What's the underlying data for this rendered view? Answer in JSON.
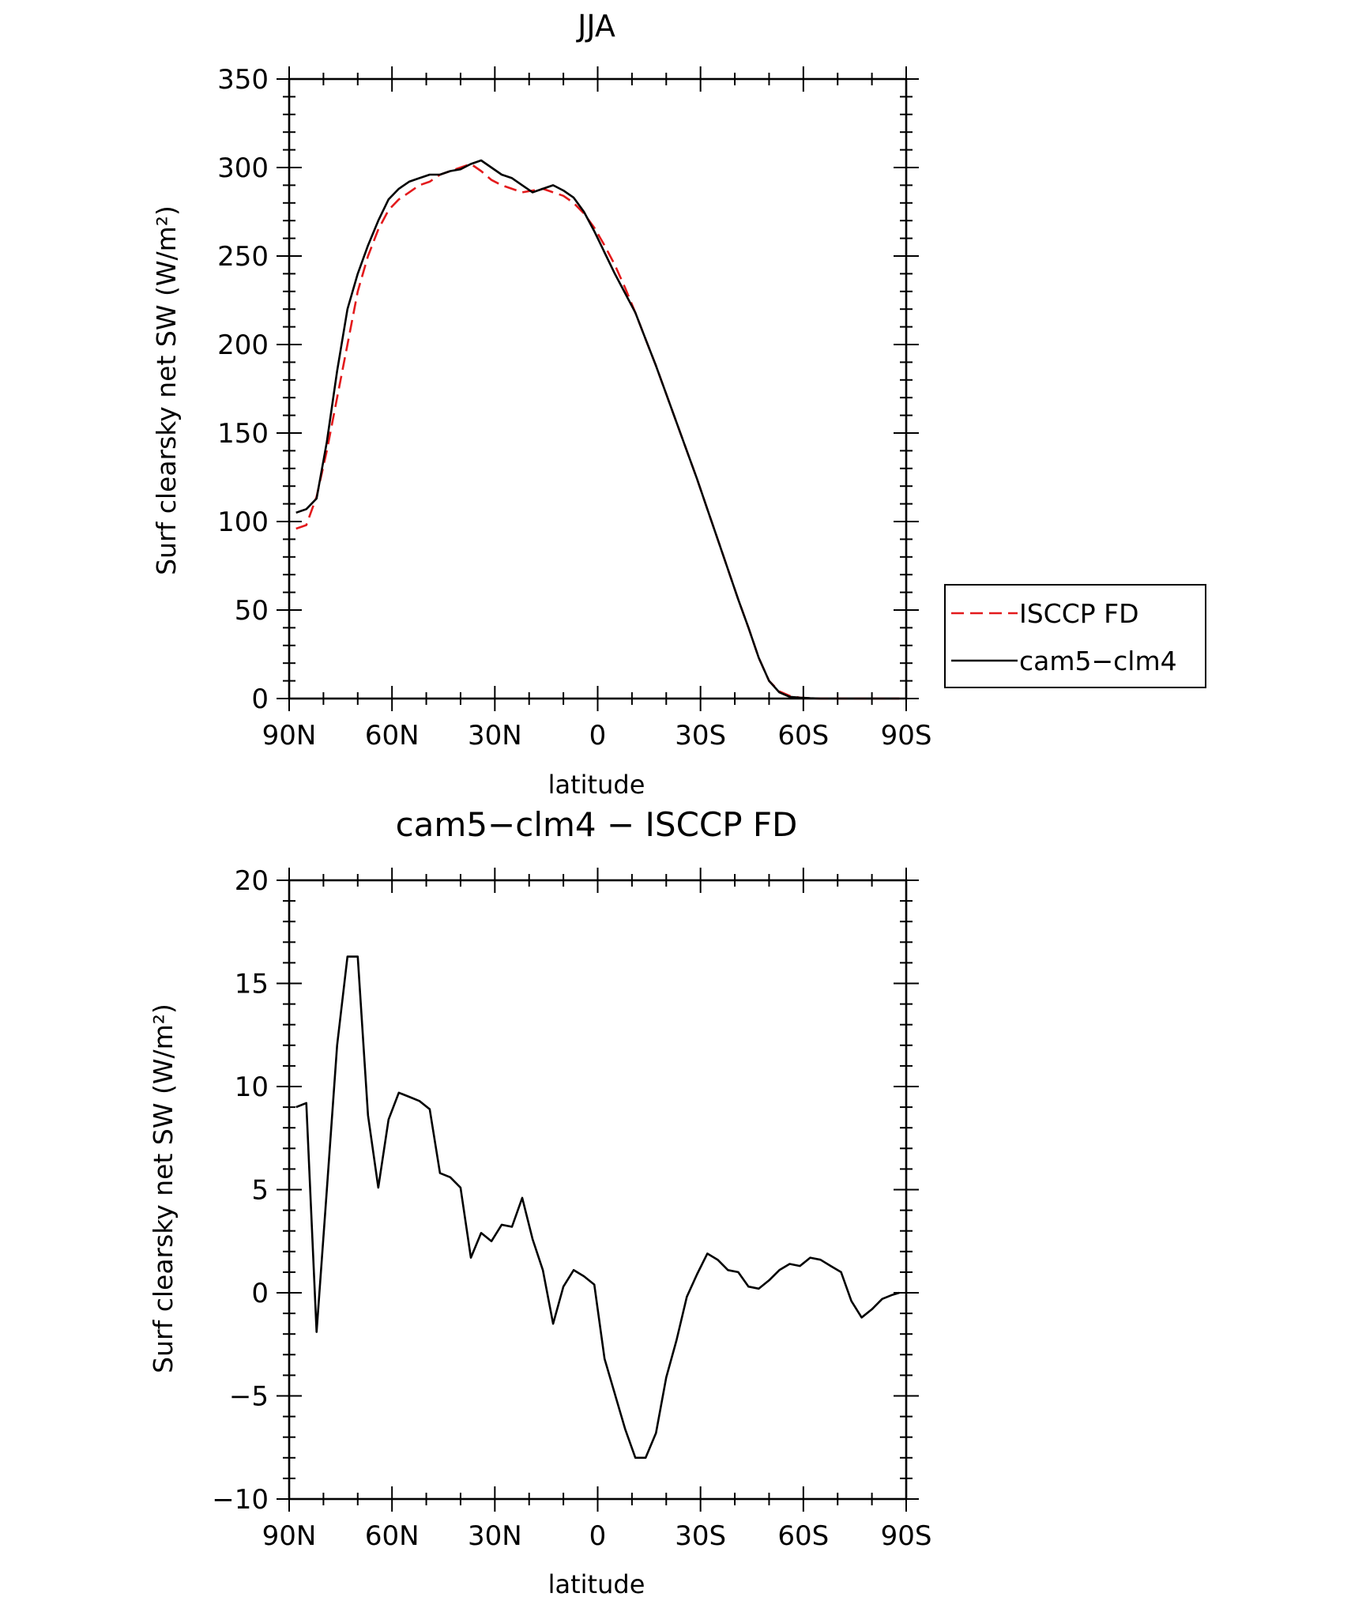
{
  "chart_data": [
    {
      "type": "line",
      "title": "JJA",
      "xlabel": "latitude",
      "ylabel": "Surf clearsky net SW (W/m²)",
      "xlim": [
        90,
        -90
      ],
      "ylim": [
        0,
        350
      ],
      "x_ticks": [
        90,
        60,
        30,
        0,
        -30,
        -60,
        -90
      ],
      "x_tick_labels": [
        "90N",
        "60N",
        "30N",
        "0",
        "30S",
        "60S",
        "90S"
      ],
      "y_ticks": [
        0,
        50,
        100,
        150,
        200,
        250,
        300,
        350
      ],
      "y_tick_labels": [
        "0",
        "50",
        "100",
        "150",
        "200",
        "250",
        "300",
        "350"
      ],
      "grid": false,
      "legend": {
        "position": "right",
        "entries": [
          "ISCCP FD",
          "cam5−clm4"
        ]
      },
      "series": [
        {
          "name": "ISCCP FD",
          "color": "#e31a1c",
          "dash": "dashed",
          "x": [
            88,
            85,
            82,
            79,
            76,
            73,
            70,
            67,
            64,
            61,
            58,
            55,
            52,
            49,
            46,
            43,
            40,
            37,
            34,
            31,
            28,
            25,
            22,
            19,
            16,
            13,
            10,
            7,
            4,
            1,
            -2,
            -5,
            -8,
            -11,
            -14,
            -17,
            -20,
            -23,
            -26,
            -29,
            -32,
            -35,
            -38,
            -41,
            -44,
            -47,
            -50,
            -53,
            -56,
            -59,
            -62,
            -65,
            -68,
            -71,
            -74,
            -77,
            -80,
            -83,
            -86,
            -88
          ],
          "y": [
            96,
            98,
            114,
            140,
            170,
            200,
            230,
            250,
            265,
            276,
            282,
            286,
            290,
            292,
            296,
            298,
            300,
            302,
            298,
            293,
            290,
            288,
            286,
            287,
            288,
            286,
            284,
            280,
            274,
            266,
            256,
            245,
            232,
            218,
            203,
            188,
            172,
            156,
            140,
            124,
            107,
            90,
            73,
            56,
            40,
            23,
            10,
            4,
            1.5,
            0.5,
            0.2,
            0,
            0,
            0,
            0,
            0,
            0,
            0,
            0,
            0
          ]
        },
        {
          "name": "cam5−clm4",
          "color": "#000000",
          "dash": "solid",
          "x": [
            88,
            85,
            82,
            79,
            76,
            73,
            70,
            67,
            64,
            61,
            58,
            55,
            52,
            49,
            46,
            43,
            40,
            37,
            34,
            31,
            28,
            25,
            22,
            19,
            16,
            13,
            10,
            7,
            4,
            1,
            -2,
            -5,
            -8,
            -11,
            -14,
            -17,
            -20,
            -23,
            -26,
            -29,
            -32,
            -35,
            -38,
            -41,
            -44,
            -47,
            -50,
            -53,
            -56,
            -59,
            -62,
            -65,
            -68,
            -71,
            -74,
            -77,
            -80,
            -83,
            -86,
            -88
          ],
          "y": [
            105,
            107,
            113,
            145,
            185,
            220,
            240,
            256,
            270,
            282,
            288,
            292,
            294,
            296,
            296,
            298,
            299,
            302,
            304,
            300,
            296,
            294,
            290,
            286,
            288,
            290,
            287,
            283,
            275,
            264,
            252,
            240,
            229,
            218,
            203,
            188,
            172,
            156,
            140,
            124,
            107,
            90,
            73,
            56,
            40,
            23,
            10,
            3.5,
            1,
            0.5,
            0.2,
            0,
            0,
            0,
            0,
            0,
            0,
            0,
            0,
            0
          ]
        }
      ]
    },
    {
      "type": "line",
      "title": "cam5−clm4 − ISCCP FD",
      "xlabel": "latitude",
      "ylabel": "Surf clearsky net SW (W/m²)",
      "xlim": [
        90,
        -90
      ],
      "ylim": [
        -10,
        20
      ],
      "x_ticks": [
        90,
        60,
        30,
        0,
        -30,
        -60,
        -90
      ],
      "x_tick_labels": [
        "90N",
        "60N",
        "30N",
        "0",
        "30S",
        "60S",
        "90S"
      ],
      "y_ticks": [
        -10,
        -5,
        0,
        5,
        10,
        15,
        20
      ],
      "y_tick_labels": [
        "−10",
        "−5",
        "0",
        "5",
        "10",
        "15",
        "20"
      ],
      "grid": false,
      "series": [
        {
          "color": "#000000",
          "dash": "solid",
          "x": [
            88,
            85,
            82,
            79,
            76,
            73,
            70,
            67,
            64,
            61,
            58,
            55,
            52,
            49,
            46,
            43,
            40,
            37,
            34,
            31,
            28,
            25,
            22,
            19,
            16,
            13,
            10,
            7,
            4,
            1,
            -2,
            -5,
            -8,
            -11,
            -14,
            -17,
            -20,
            -23,
            -26,
            -29,
            -32,
            -35,
            -38,
            -41,
            -44,
            -47,
            -50,
            -53,
            -56,
            -59,
            -62,
            -65,
            -68,
            -71,
            -74,
            -77,
            -80,
            -83,
            -86,
            -88
          ],
          "y": [
            9.0,
            9.2,
            -1.9,
            5.0,
            12.0,
            16.3,
            16.3,
            8.6,
            5.1,
            8.4,
            9.7,
            9.5,
            9.3,
            8.9,
            5.8,
            5.6,
            5.1,
            1.7,
            2.9,
            2.5,
            3.3,
            3.2,
            4.6,
            2.6,
            1.1,
            -1.5,
            0.3,
            1.1,
            0.8,
            0.4,
            -3.2,
            -4.9,
            -6.6,
            -8.0,
            -8.0,
            -6.8,
            -4.1,
            -2.3,
            -0.2,
            0.9,
            1.9,
            1.6,
            1.1,
            1.0,
            0.3,
            0.2,
            0.6,
            1.1,
            1.4,
            1.3,
            1.7,
            1.6,
            1.3,
            1.0,
            -0.4,
            -1.2,
            -0.8,
            -0.3,
            -0.1,
            0.0
          ]
        }
      ]
    }
  ]
}
